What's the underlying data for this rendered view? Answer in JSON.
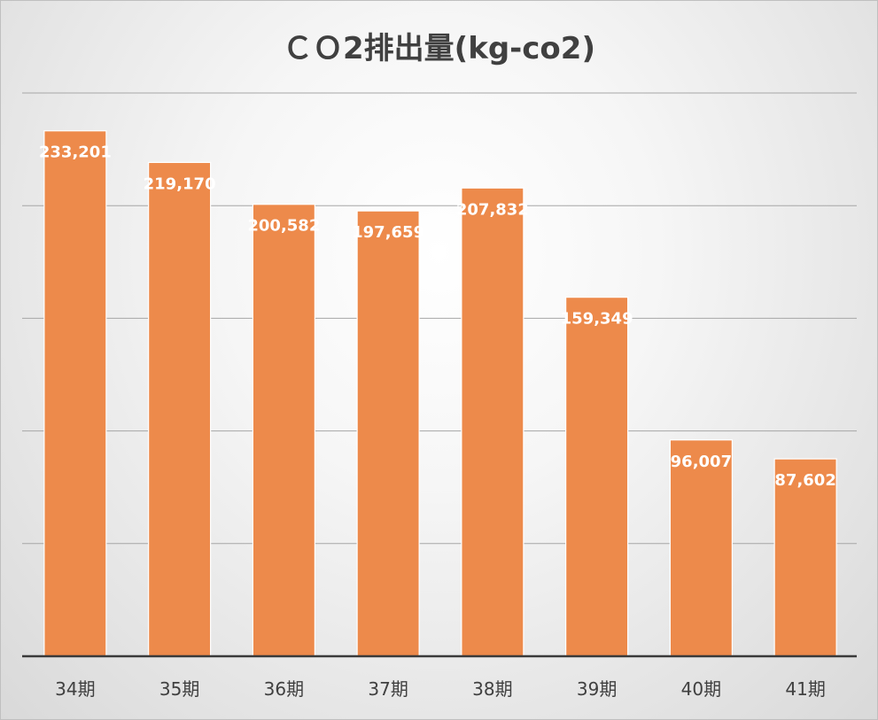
{
  "chart_data": {
    "type": "bar",
    "title": "ＣＯ2排出量(kg-co2)",
    "categories": [
      "34期",
      "35期",
      "36期",
      "37期",
      "38期",
      "39期",
      "40期",
      "41期"
    ],
    "values": [
      233201,
      219170,
      200582,
      197659,
      207832,
      159349,
      96007,
      87602
    ],
    "data_labels": [
      "233,201",
      "219,170",
      "200,582",
      "197,659",
      "207,832",
      "159,349",
      "96,007",
      "87,602"
    ],
    "ylim": [
      0,
      250000
    ],
    "y_axis_labels_shown": false,
    "grid": true,
    "legend": "none",
    "colors": {
      "bar": "#ED8A4B",
      "label": "#FFFFFF",
      "title": "#404040"
    }
  }
}
